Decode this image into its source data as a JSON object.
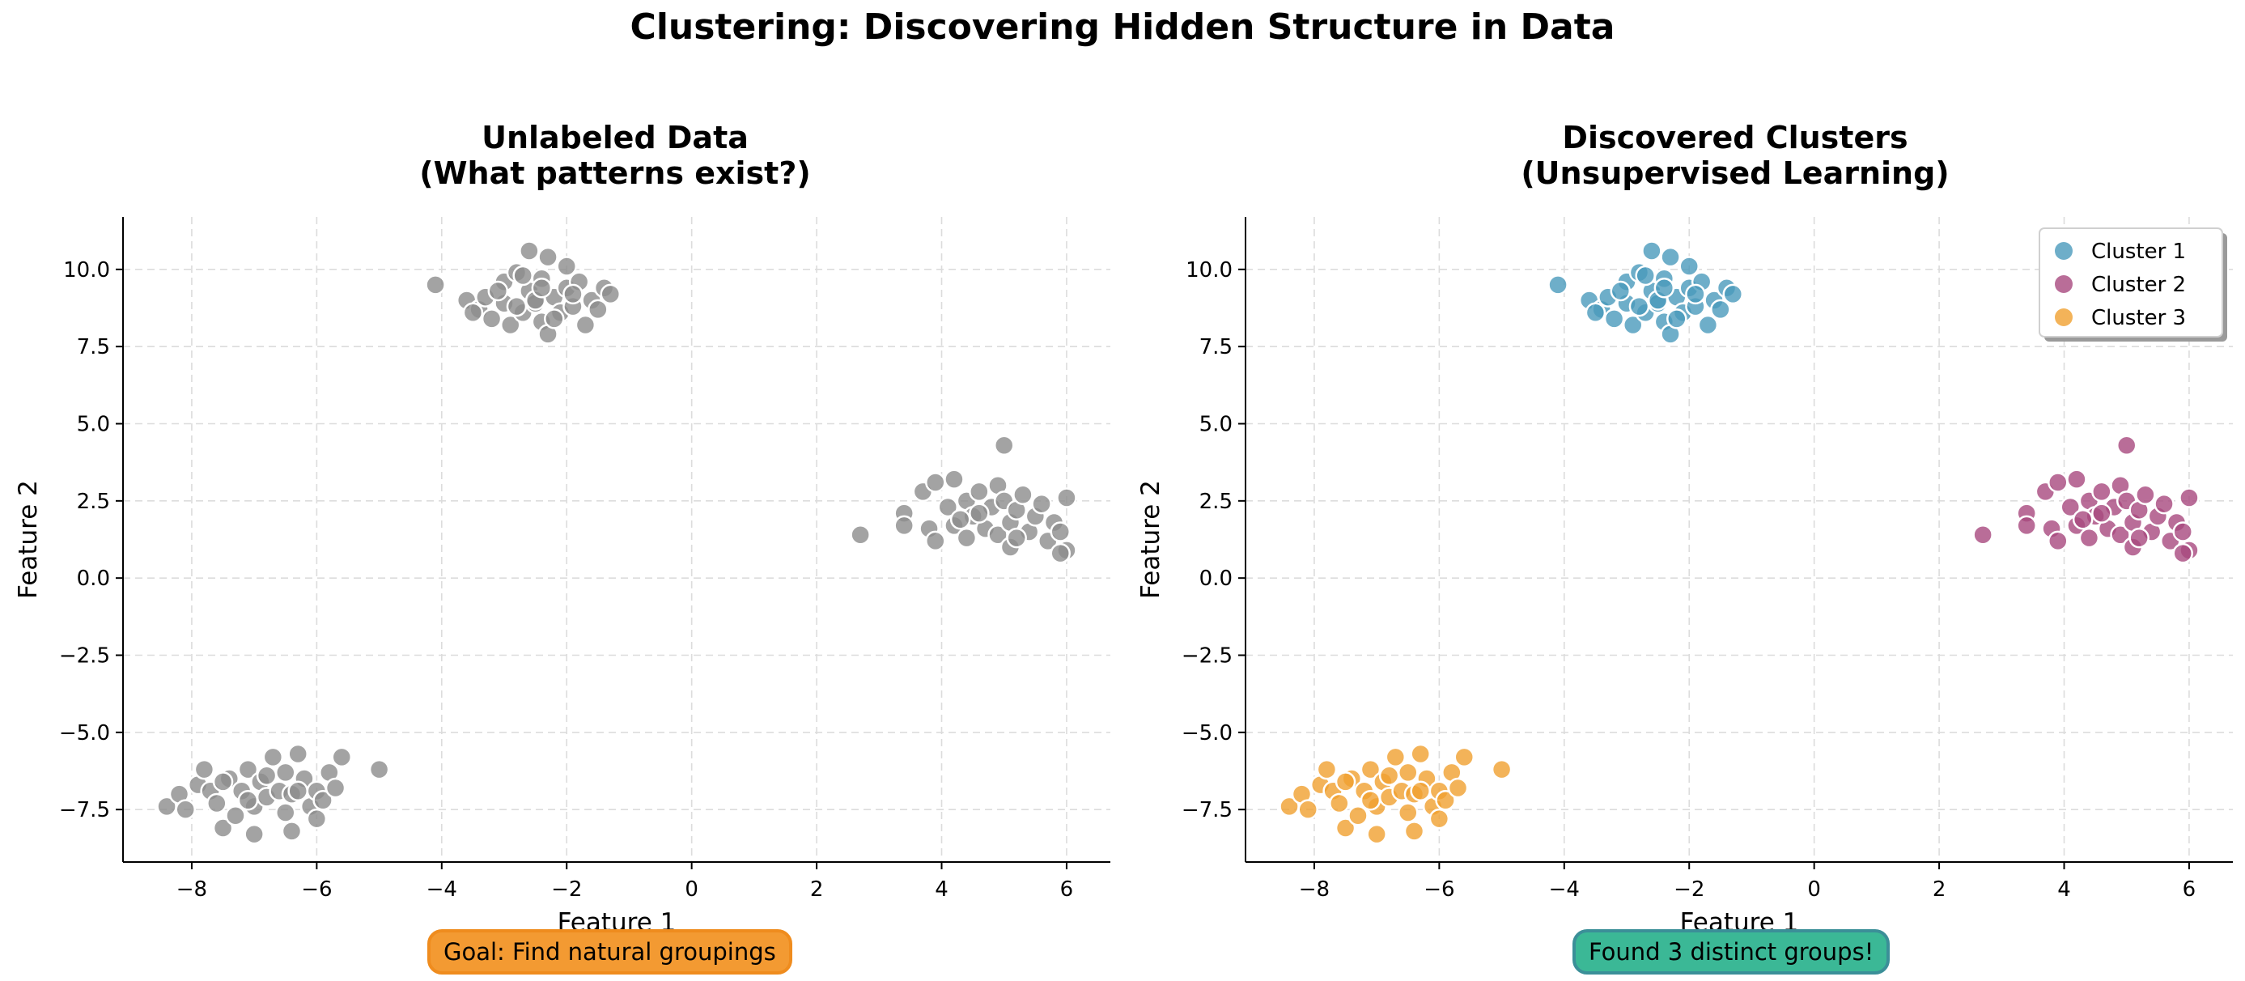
{
  "figure_title": "Clustering: Discovering Hidden Structure in Data",
  "left_panel": {
    "title_line1": "Unlabeled Data",
    "title_line2": "(What patterns exist?)",
    "callout": "Goal: Find natural groupings"
  },
  "right_panel": {
    "title_line1": "Discovered Clusters",
    "title_line2": "(Unsupervised Learning)",
    "callout": "Found 3 distinct groups!"
  },
  "colors": {
    "unlabeled": "#8c8c8c",
    "cluster_1": "#4a9abb",
    "cluster_2": "#a8497e",
    "cluster_3": "#f0a030",
    "goal_box": "#f39a32",
    "result_box": "#3bb896"
  },
  "chart_data": [
    {
      "type": "scatter",
      "title": "Unlabeled Data (What patterns exist?)",
      "xlabel": "Feature 1",
      "ylabel": "Feature 2",
      "xlim": [
        -9.1,
        6.7
      ],
      "ylim": [
        -9.2,
        11.7
      ],
      "xticks": [
        -8,
        -6,
        -4,
        -2,
        0,
        2,
        4,
        6
      ],
      "yticks": [
        -7.5,
        -5.0,
        -2.5,
        0.0,
        2.5,
        5.0,
        7.5,
        10.0
      ],
      "grid": true,
      "legend": false,
      "series": [
        {
          "color_key": "unlabeled",
          "points": [
            [
              -4.1,
              9.5
            ],
            [
              -3.6,
              9.0
            ],
            [
              -3.4,
              8.7
            ],
            [
              -3.3,
              9.1
            ],
            [
              -3.2,
              8.4
            ],
            [
              -3.0,
              9.6
            ],
            [
              -3.0,
              8.9
            ],
            [
              -2.9,
              8.2
            ],
            [
              -2.8,
              9.9
            ],
            [
              -2.7,
              8.6
            ],
            [
              -2.6,
              9.3
            ],
            [
              -2.6,
              10.6
            ],
            [
              -2.5,
              8.9
            ],
            [
              -2.4,
              8.3
            ],
            [
              -2.4,
              9.7
            ],
            [
              -2.3,
              10.4
            ],
            [
              -2.3,
              7.9
            ],
            [
              -2.2,
              9.1
            ],
            [
              -2.1,
              8.6
            ],
            [
              -2.0,
              10.1
            ],
            [
              -2.0,
              9.4
            ],
            [
              -1.9,
              8.8
            ],
            [
              -1.8,
              9.6
            ],
            [
              -1.7,
              8.2
            ],
            [
              -1.6,
              9.0
            ],
            [
              -1.5,
              8.7
            ],
            [
              -1.4,
              9.4
            ],
            [
              -1.3,
              9.2
            ],
            [
              -2.8,
              8.8
            ],
            [
              -3.1,
              9.3
            ],
            [
              -2.5,
              9.0
            ],
            [
              -2.2,
              8.4
            ],
            [
              -2.7,
              9.8
            ],
            [
              -3.5,
              8.6
            ],
            [
              -1.9,
              9.2
            ],
            [
              -2.4,
              9.4
            ],
            [
              2.7,
              1.4
            ],
            [
              3.4,
              2.1
            ],
            [
              3.4,
              1.7
            ],
            [
              3.7,
              2.8
            ],
            [
              3.8,
              1.6
            ],
            [
              3.9,
              3.1
            ],
            [
              3.9,
              1.2
            ],
            [
              4.1,
              2.3
            ],
            [
              4.2,
              3.2
            ],
            [
              4.2,
              1.7
            ],
            [
              4.4,
              2.5
            ],
            [
              4.4,
              1.3
            ],
            [
              4.5,
              2.0
            ],
            [
              4.6,
              2.8
            ],
            [
              4.7,
              1.6
            ],
            [
              4.8,
              2.3
            ],
            [
              4.9,
              3.0
            ],
            [
              4.9,
              1.4
            ],
            [
              5.0,
              4.3
            ],
            [
              5.0,
              2.5
            ],
            [
              5.1,
              1.8
            ],
            [
              5.1,
              1.0
            ],
            [
              5.2,
              2.2
            ],
            [
              5.3,
              2.7
            ],
            [
              5.4,
              1.5
            ],
            [
              5.5,
              2.0
            ],
            [
              5.6,
              2.4
            ],
            [
              5.7,
              1.2
            ],
            [
              5.8,
              1.8
            ],
            [
              5.9,
              1.5
            ],
            [
              6.0,
              2.6
            ],
            [
              6.0,
              0.9
            ],
            [
              5.9,
              0.8
            ],
            [
              4.3,
              1.9
            ],
            [
              4.6,
              2.1
            ],
            [
              5.2,
              1.3
            ],
            [
              -8.4,
              -7.4
            ],
            [
              -8.2,
              -7.0
            ],
            [
              -8.1,
              -7.5
            ],
            [
              -7.9,
              -6.7
            ],
            [
              -7.8,
              -6.2
            ],
            [
              -7.7,
              -6.9
            ],
            [
              -7.6,
              -7.3
            ],
            [
              -7.5,
              -8.1
            ],
            [
              -7.4,
              -6.5
            ],
            [
              -7.3,
              -7.7
            ],
            [
              -7.2,
              -6.9
            ],
            [
              -7.1,
              -6.2
            ],
            [
              -7.0,
              -7.4
            ],
            [
              -7.0,
              -8.3
            ],
            [
              -6.9,
              -6.6
            ],
            [
              -6.8,
              -7.1
            ],
            [
              -6.7,
              -5.8
            ],
            [
              -6.6,
              -6.9
            ],
            [
              -6.5,
              -7.6
            ],
            [
              -6.5,
              -6.3
            ],
            [
              -6.4,
              -7.0
            ],
            [
              -6.4,
              -8.2
            ],
            [
              -6.3,
              -5.7
            ],
            [
              -6.2,
              -6.5
            ],
            [
              -6.1,
              -7.4
            ],
            [
              -6.0,
              -6.9
            ],
            [
              -5.9,
              -7.2
            ],
            [
              -5.8,
              -6.3
            ],
            [
              -5.7,
              -6.8
            ],
            [
              -5.6,
              -5.8
            ],
            [
              -5.0,
              -6.2
            ],
            [
              -6.8,
              -6.4
            ],
            [
              -7.1,
              -7.2
            ],
            [
              -6.3,
              -6.9
            ],
            [
              -7.5,
              -6.6
            ],
            [
              -6.0,
              -7.8
            ]
          ]
        }
      ]
    },
    {
      "type": "scatter",
      "title": "Discovered Clusters (Unsupervised Learning)",
      "xlabel": "Feature 1",
      "ylabel": "Feature 2",
      "xlim": [
        -9.1,
        6.7
      ],
      "ylim": [
        -9.2,
        11.7
      ],
      "xticks": [
        -8,
        -6,
        -4,
        -2,
        0,
        2,
        4,
        6
      ],
      "yticks": [
        -7.5,
        -5.0,
        -2.5,
        0.0,
        2.5,
        5.0,
        7.5,
        10.0
      ],
      "grid": true,
      "legend": true,
      "legend_position": "top-right",
      "series": [
        {
          "name": "Cluster 1",
          "color_key": "cluster_1",
          "points": [
            [
              -4.1,
              9.5
            ],
            [
              -3.6,
              9.0
            ],
            [
              -3.4,
              8.7
            ],
            [
              -3.3,
              9.1
            ],
            [
              -3.2,
              8.4
            ],
            [
              -3.0,
              9.6
            ],
            [
              -3.0,
              8.9
            ],
            [
              -2.9,
              8.2
            ],
            [
              -2.8,
              9.9
            ],
            [
              -2.7,
              8.6
            ],
            [
              -2.6,
              9.3
            ],
            [
              -2.6,
              10.6
            ],
            [
              -2.5,
              8.9
            ],
            [
              -2.4,
              8.3
            ],
            [
              -2.4,
              9.7
            ],
            [
              -2.3,
              10.4
            ],
            [
              -2.3,
              7.9
            ],
            [
              -2.2,
              9.1
            ],
            [
              -2.1,
              8.6
            ],
            [
              -2.0,
              10.1
            ],
            [
              -2.0,
              9.4
            ],
            [
              -1.9,
              8.8
            ],
            [
              -1.8,
              9.6
            ],
            [
              -1.7,
              8.2
            ],
            [
              -1.6,
              9.0
            ],
            [
              -1.5,
              8.7
            ],
            [
              -1.4,
              9.4
            ],
            [
              -1.3,
              9.2
            ],
            [
              -2.8,
              8.8
            ],
            [
              -3.1,
              9.3
            ],
            [
              -2.5,
              9.0
            ],
            [
              -2.2,
              8.4
            ],
            [
              -2.7,
              9.8
            ],
            [
              -3.5,
              8.6
            ],
            [
              -1.9,
              9.2
            ],
            [
              -2.4,
              9.4
            ]
          ]
        },
        {
          "name": "Cluster 2",
          "color_key": "cluster_2",
          "points": [
            [
              2.7,
              1.4
            ],
            [
              3.4,
              2.1
            ],
            [
              3.4,
              1.7
            ],
            [
              3.7,
              2.8
            ],
            [
              3.8,
              1.6
            ],
            [
              3.9,
              3.1
            ],
            [
              3.9,
              1.2
            ],
            [
              4.1,
              2.3
            ],
            [
              4.2,
              3.2
            ],
            [
              4.2,
              1.7
            ],
            [
              4.4,
              2.5
            ],
            [
              4.4,
              1.3
            ],
            [
              4.5,
              2.0
            ],
            [
              4.6,
              2.8
            ],
            [
              4.7,
              1.6
            ],
            [
              4.8,
              2.3
            ],
            [
              4.9,
              3.0
            ],
            [
              4.9,
              1.4
            ],
            [
              5.0,
              4.3
            ],
            [
              5.0,
              2.5
            ],
            [
              5.1,
              1.8
            ],
            [
              5.1,
              1.0
            ],
            [
              5.2,
              2.2
            ],
            [
              5.3,
              2.7
            ],
            [
              5.4,
              1.5
            ],
            [
              5.5,
              2.0
            ],
            [
              5.6,
              2.4
            ],
            [
              5.7,
              1.2
            ],
            [
              5.8,
              1.8
            ],
            [
              5.9,
              1.5
            ],
            [
              6.0,
              2.6
            ],
            [
              6.0,
              0.9
            ],
            [
              5.9,
              0.8
            ],
            [
              4.3,
              1.9
            ],
            [
              4.6,
              2.1
            ],
            [
              5.2,
              1.3
            ]
          ]
        },
        {
          "name": "Cluster 3",
          "color_key": "cluster_3",
          "points": [
            [
              -8.4,
              -7.4
            ],
            [
              -8.2,
              -7.0
            ],
            [
              -8.1,
              -7.5
            ],
            [
              -7.9,
              -6.7
            ],
            [
              -7.8,
              -6.2
            ],
            [
              -7.7,
              -6.9
            ],
            [
              -7.6,
              -7.3
            ],
            [
              -7.5,
              -8.1
            ],
            [
              -7.4,
              -6.5
            ],
            [
              -7.3,
              -7.7
            ],
            [
              -7.2,
              -6.9
            ],
            [
              -7.1,
              -6.2
            ],
            [
              -7.0,
              -7.4
            ],
            [
              -7.0,
              -8.3
            ],
            [
              -6.9,
              -6.6
            ],
            [
              -6.8,
              -7.1
            ],
            [
              -6.7,
              -5.8
            ],
            [
              -6.6,
              -6.9
            ],
            [
              -6.5,
              -7.6
            ],
            [
              -6.5,
              -6.3
            ],
            [
              -6.4,
              -7.0
            ],
            [
              -6.4,
              -8.2
            ],
            [
              -6.3,
              -5.7
            ],
            [
              -6.2,
              -6.5
            ],
            [
              -6.1,
              -7.4
            ],
            [
              -6.0,
              -6.9
            ],
            [
              -5.9,
              -7.2
            ],
            [
              -5.8,
              -6.3
            ],
            [
              -5.7,
              -6.8
            ],
            [
              -5.6,
              -5.8
            ],
            [
              -5.0,
              -6.2
            ],
            [
              -6.8,
              -6.4
            ],
            [
              -7.1,
              -7.2
            ],
            [
              -6.3,
              -6.9
            ],
            [
              -7.5,
              -6.6
            ],
            [
              -6.0,
              -7.8
            ]
          ]
        }
      ]
    }
  ]
}
